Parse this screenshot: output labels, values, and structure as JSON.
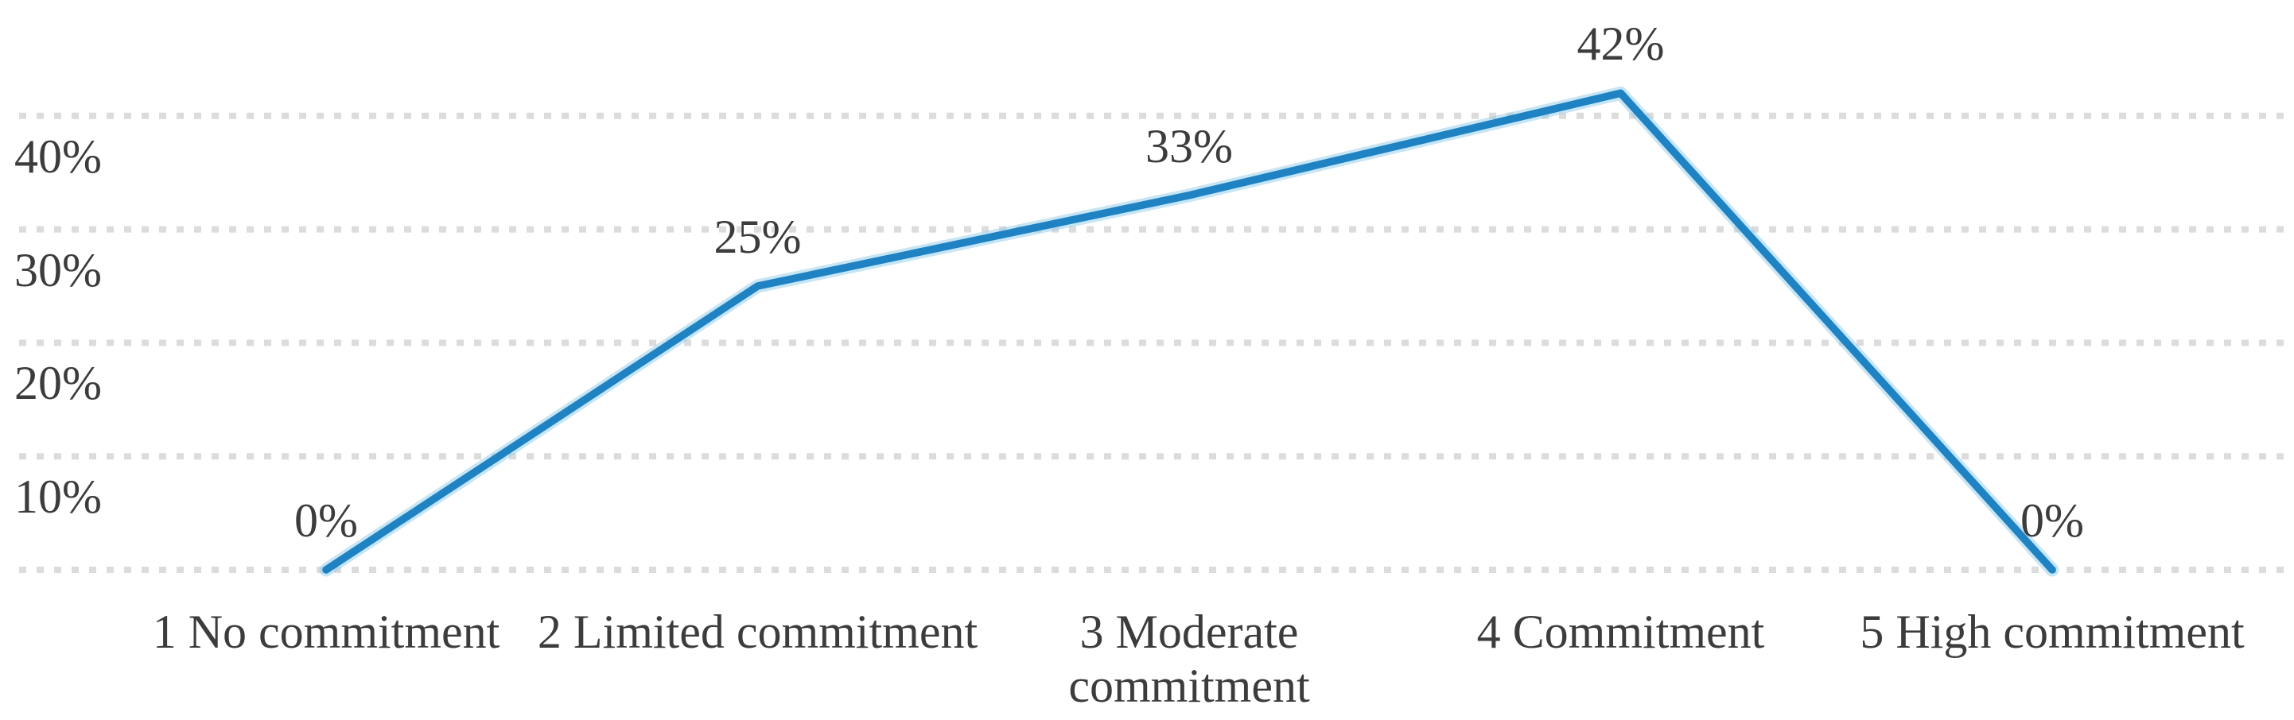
{
  "chart_data": {
    "type": "line",
    "title": "",
    "categories": [
      "1 No commitment",
      "2 Limited commitment",
      "3 Moderate commitment",
      "4 Commitment",
      "5 High commitment"
    ],
    "category_label_lines": [
      [
        "1 No commitment"
      ],
      [
        "2 Limited commitment"
      ],
      [
        "3 Moderate",
        "commitment"
      ],
      [
        "4 Commitment"
      ],
      [
        "5 High commitment"
      ]
    ],
    "values": [
      0,
      25,
      33,
      42,
      0
    ],
    "data_labels": [
      "0%",
      "25%",
      "33%",
      "42%",
      "0%"
    ],
    "y_axis": {
      "tick_labels": [
        "40%",
        "30%",
        "20%",
        "10%"
      ],
      "tick_values": [
        40,
        30,
        20,
        10
      ],
      "unit": "%",
      "range": [
        0,
        45
      ]
    },
    "gridlines": {
      "values": [
        0,
        10,
        20,
        30,
        40
      ],
      "style": "horizontal-dotted"
    },
    "legend": "none",
    "xlabel": "",
    "ylabel": "",
    "colors": {
      "line": "#1f82c2",
      "line_halo": "#8ecbec",
      "gridline": "#dcdcdc",
      "text": "#3c3c3c",
      "background": "#ffffff"
    }
  }
}
